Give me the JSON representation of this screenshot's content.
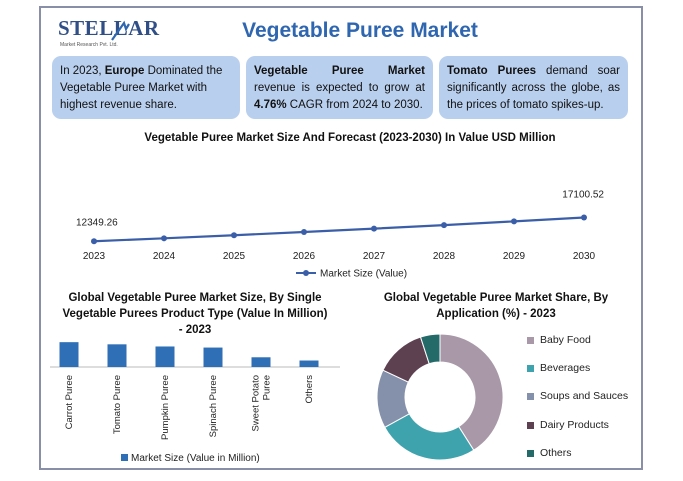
{
  "logo": {
    "name": "STELLAR",
    "sub": "Market Research Pvt. Ltd."
  },
  "title": "Vegetable Puree Market",
  "boxes": [
    {
      "pre": "In 2023, ",
      "bold": "Europe",
      "post": " Dominated the Vegetable Puree Market with highest revenue share."
    },
    {
      "bold1": "Vegetable Puree Market",
      "mid": " revenue is expected to grow at ",
      "bold2": "4.76%",
      "post": " CAGR from 2024 to 2030."
    },
    {
      "bold": "Tomato Purees",
      "post": " demand soar significantly across the globe, as the prices of tomato spikes-up."
    }
  ],
  "colors": {
    "accent": "#2f66b0",
    "box": "#b9cfee",
    "line": "#3b5ea8",
    "bar": "#2f6fb6"
  },
  "chart_data": [
    {
      "type": "line",
      "title": "Vegetable Puree Market Size And Forecast (2023-2030) In Value USD Million",
      "x": [
        "2023",
        "2024",
        "2025",
        "2026",
        "2027",
        "2028",
        "2029",
        "2030"
      ],
      "series": [
        {
          "name": "Market Size (Value)",
          "values": [
            12349.26,
            12937,
            13553,
            14198,
            14874,
            15582,
            16323,
            17100.52
          ]
        }
      ],
      "data_labels": [
        "12349.26",
        "17100.52"
      ],
      "ylim": [
        0,
        40000
      ],
      "grid": false,
      "legend": "bottom"
    },
    {
      "type": "bar",
      "title": "Global Vegetable Puree Market Size, By Single Vegetable Purees Product Type (Value In Million) - 2023",
      "categories": [
        "Carrot Puree",
        "Tomato Puree",
        "Pumpkin Puree",
        "Spinach Puree",
        "Sweet Potato Puree",
        "Others"
      ],
      "series": [
        {
          "name": "Market Size (Value in Million)",
          "values": [
            23,
            21,
            19,
            18,
            9,
            6
          ]
        }
      ],
      "ylim": [
        0,
        25
      ],
      "legend": "bottom"
    },
    {
      "type": "pie",
      "title": "Global Vegetable Puree Market Share, By Application (%) - 2023",
      "labels": [
        "Baby Food",
        "Beverages",
        "Soups and Sauces",
        "Dairy Products",
        "Others"
      ],
      "values": [
        41,
        26,
        15,
        13,
        5
      ],
      "colors": [
        "#a898a8",
        "#3fa3ad",
        "#8591ab",
        "#5e4150",
        "#246a68"
      ],
      "legend": "right"
    }
  ]
}
